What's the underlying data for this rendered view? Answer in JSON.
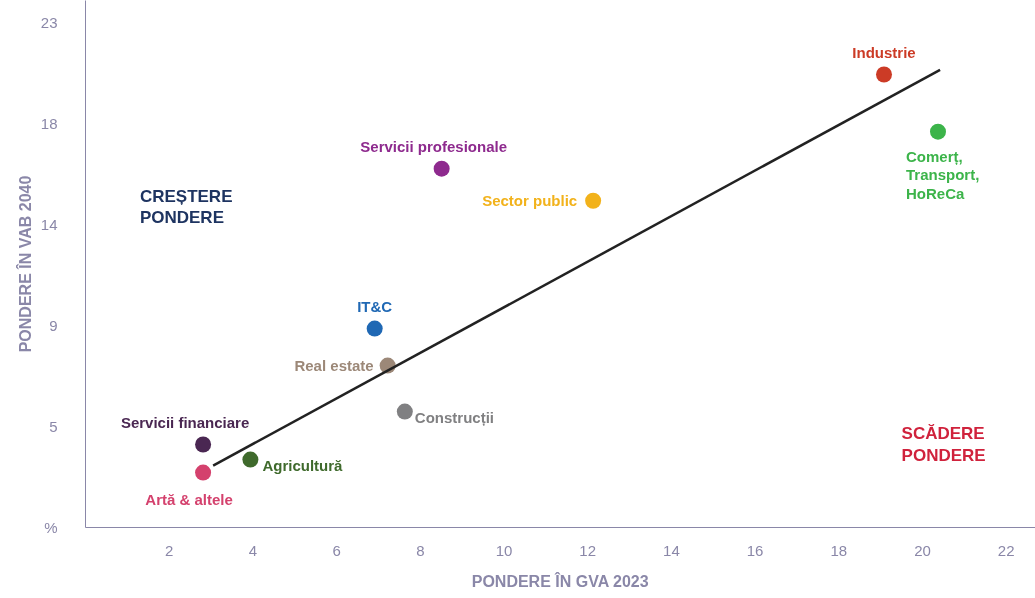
{
  "chart_data": {
    "type": "scatter",
    "xlabel": "PONDERE ÎN GVA 2023",
    "ylabel": "PONDERE ÎN VAB 2040",
    "xlim": [
      0,
      22.7
    ],
    "ylim": [
      0,
      23.5
    ],
    "xticks": [
      2,
      4,
      6,
      8,
      10,
      12,
      14,
      16,
      18,
      20,
      22
    ],
    "yticks": [
      {
        "value": 4.5,
        "label": "5"
      },
      {
        "value": 9,
        "label": "9"
      },
      {
        "value": 13.5,
        "label": "14"
      },
      {
        "value": 18,
        "label": "18"
      },
      {
        "value": 22.5,
        "label": "23"
      }
    ],
    "grid": false,
    "marker": "circle",
    "series": [
      {
        "name": "Industrie",
        "color": "#cc3b26",
        "x": [
          19.08
        ],
        "values": [
          20.2
        ]
      },
      {
        "name": "Comerț,\nTransport,\nHoReCa",
        "color": "#3cb44a",
        "x": [
          20.37
        ],
        "values": [
          17.65
        ]
      },
      {
        "name": "Servicii profesionale",
        "color": "#8e2a8e",
        "x": [
          8.51
        ],
        "values": [
          16.0
        ]
      },
      {
        "name": "Sector public",
        "color": "#f2b21b",
        "x": [
          12.13
        ],
        "values": [
          14.57
        ]
      },
      {
        "name": "IT&C",
        "color": "#1f68b4",
        "x": [
          6.91
        ],
        "values": [
          8.87
        ]
      },
      {
        "name": "Real estate",
        "color": "#9c8878",
        "x": [
          7.22
        ],
        "values": [
          7.22
        ]
      },
      {
        "name": "Construcții",
        "color": "#808082",
        "x": [
          7.63
        ],
        "values": [
          5.17
        ]
      },
      {
        "name": "Servicii financiare",
        "color": "#4a2752",
        "x": [
          2.81
        ],
        "values": [
          3.7
        ]
      },
      {
        "name": "Agricultură",
        "color": "#3f6a2c",
        "x": [
          3.94
        ],
        "values": [
          3.03
        ]
      },
      {
        "name": "Artă & altele",
        "color": "#d4416d",
        "x": [
          2.81
        ],
        "values": [
          2.45
        ]
      },
      {
        "type": "line",
        "marker": "none",
        "color": "#222222",
        "x": [
          3.05,
          20.42
        ],
        "values": [
          2.76,
          20.41
        ]
      }
    ],
    "annotations": [
      "CREȘTERE\nPONDERE",
      "SCĂDERE\nPONDERE",
      "%"
    ]
  }
}
